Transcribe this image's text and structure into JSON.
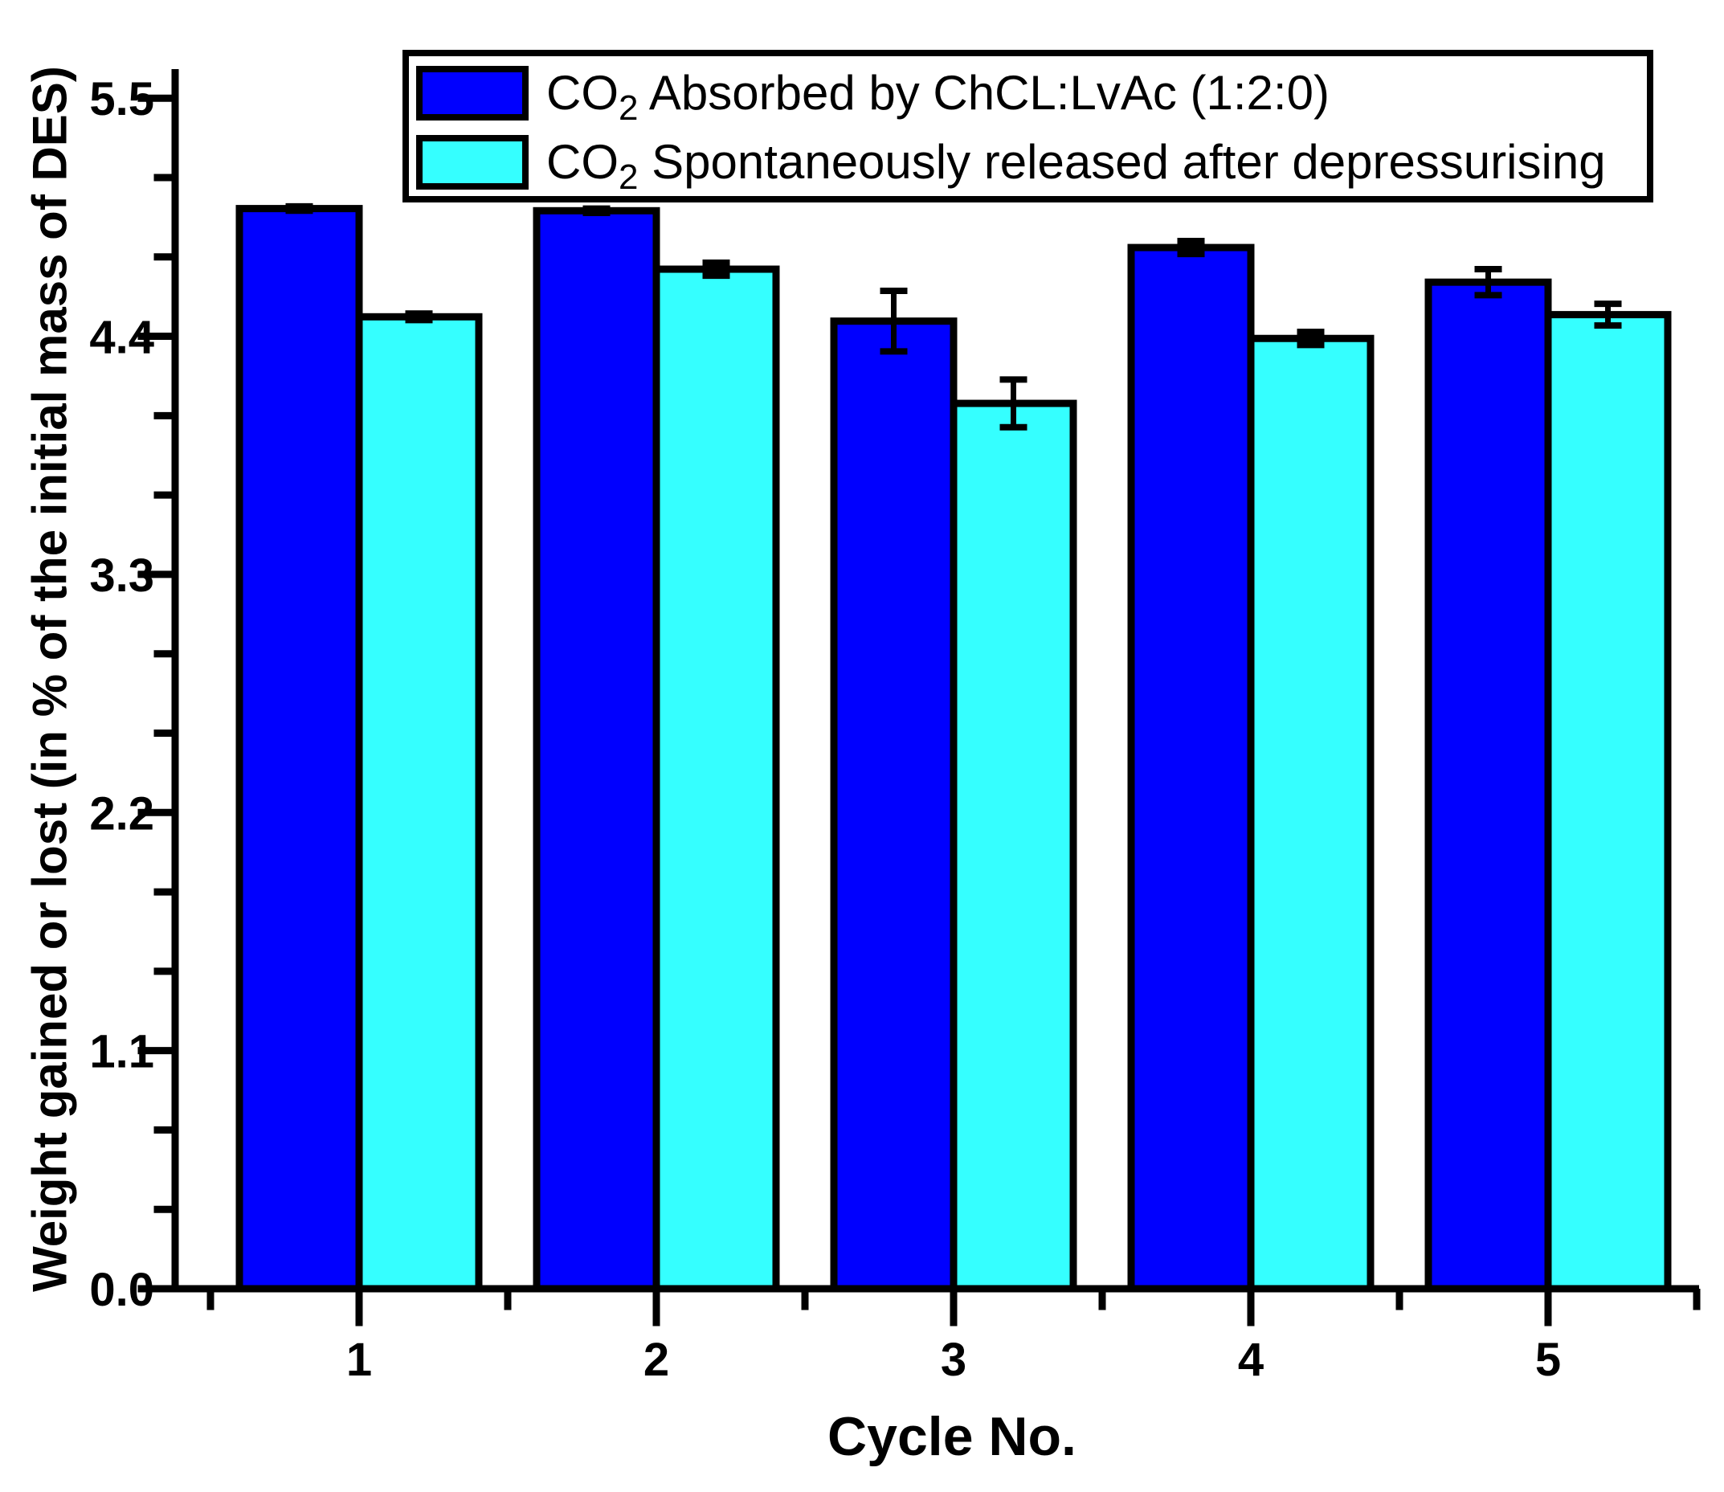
{
  "chart_data": {
    "type": "bar",
    "title": "",
    "xlabel": "Cycle No.",
    "ylabel": "Weight gained or lost (in % of the initial mass of DES)",
    "categories": [
      "1",
      "2",
      "3",
      "4",
      "5"
    ],
    "ylim": [
      0,
      5.5
    ],
    "yticks": [
      0.0,
      1.1,
      2.2,
      3.3,
      4.4,
      5.5
    ],
    "ytick_labels": [
      "0.0",
      "1.1",
      "2.2",
      "3.3",
      "4.4",
      "5.5"
    ],
    "y_minor_ticks_per_interval": 2,
    "x_minor_tick_offset": 0.5,
    "grid": false,
    "legend_position": "top-center-inside",
    "series": [
      {
        "name": "CO2 Absorbed by ChCL:LvAc (1:2:0)",
        "label_pre": "CO",
        "label_sub": "2",
        "label_post": " Absorbed by ChCL:LvAc (1:2:0)",
        "color": "#0000ff",
        "values": [
          4.99,
          4.98,
          4.47,
          4.81,
          4.65
        ],
        "errors": [
          0.01,
          0.01,
          0.14,
          0.03,
          0.06
        ]
      },
      {
        "name": "CO2 Spontaneously released after depressurising",
        "label_pre": "CO",
        "label_sub": "2",
        "label_post": " Spontaneously released after depressurising",
        "color": "#35ffff",
        "values": [
          4.49,
          4.71,
          4.09,
          4.39,
          4.5
        ],
        "errors": [
          0.015,
          0.03,
          0.11,
          0.03,
          0.05
        ]
      }
    ],
    "bar_outline_color": "#000000",
    "error_bar_color": "#000000",
    "axis_color": "#000000",
    "background_color": "#ffffff"
  }
}
